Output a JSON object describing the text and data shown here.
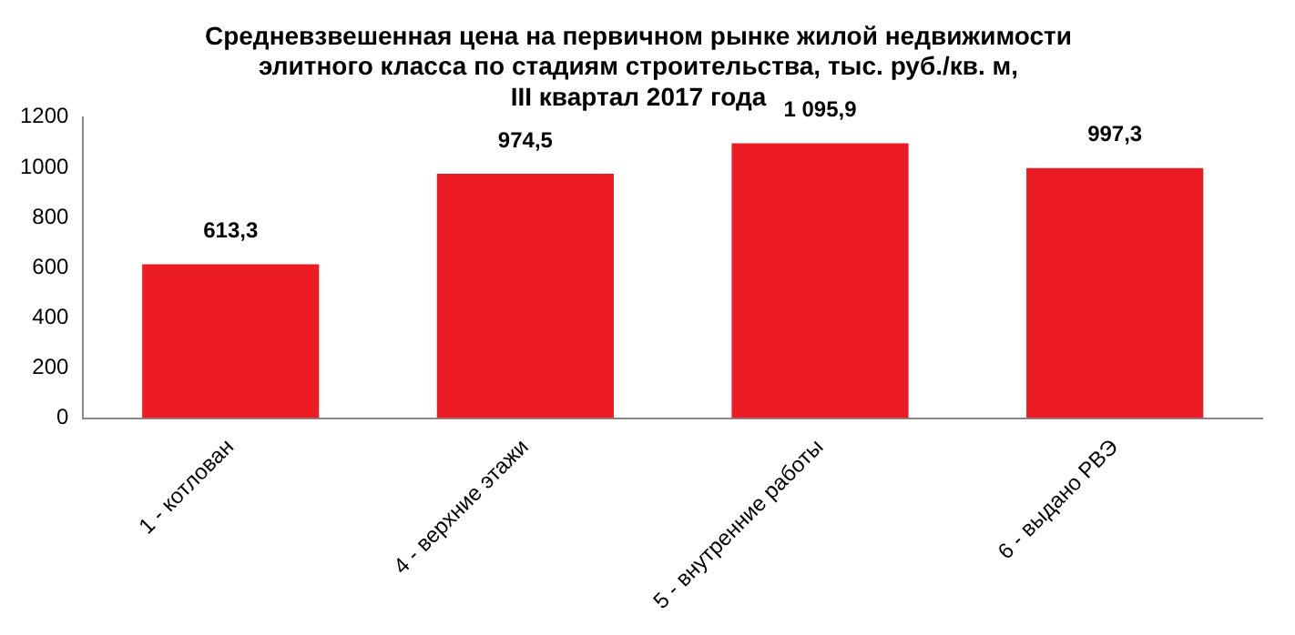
{
  "chart_data": {
    "type": "bar",
    "title": "Средневзвешенная цена на первичном рынке жилой недвижимости\nэлитного класса по стадиям строительства, тыс. руб./кв. м,\nIII квартал 2017 года",
    "categories": [
      "1 - котлован",
      "4 - верхние этажи",
      "5 - внутренние работы",
      "6 - выдано РВЭ"
    ],
    "values": [
      613.3,
      974.5,
      1095.9,
      997.3
    ],
    "value_labels": [
      "613,3",
      "974,5",
      "1 095,9",
      "997,3"
    ],
    "color": "#ed1c24",
    "ylim": [
      0,
      1200
    ],
    "yticks": [
      0,
      200,
      400,
      600,
      800,
      1000,
      1200
    ],
    "grid": false,
    "legend": false
  }
}
